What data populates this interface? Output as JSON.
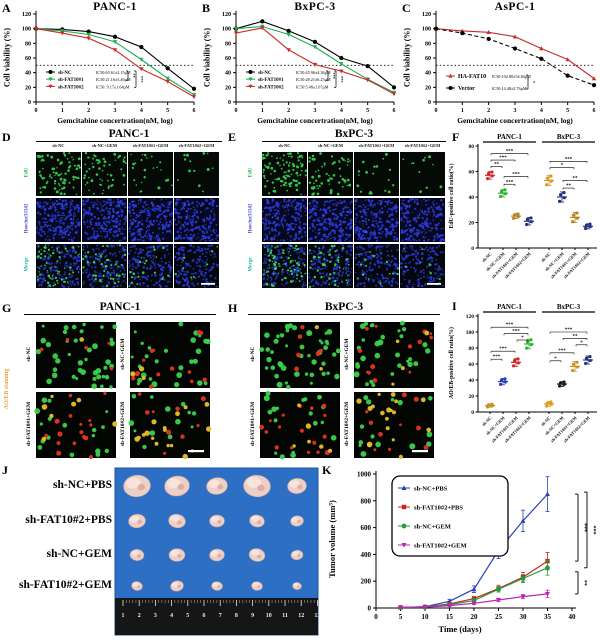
{
  "chart_data": [
    {
      "id": "A",
      "panel_label": "A",
      "type": "line",
      "title": "PANC-1",
      "xlabel": "Gemcitabine concertration(nM, log)",
      "ylabel": "Cell viability (%)",
      "xlim": [
        0,
        6
      ],
      "ylim": [
        0,
        120
      ],
      "ytick": 20,
      "hline": 50,
      "sig": [
        "**",
        "***"
      ],
      "series": [
        {
          "name": "sh-NC",
          "ic50": "IC50:65.61±2.15μM",
          "color": "#000000",
          "marker": "circle",
          "values": [
            100,
            99,
            96,
            89,
            75,
            46,
            18
          ]
        },
        {
          "name": "sh-FAT10#1",
          "ic50": "IC50:21.16±3.46μM",
          "color": "#1faf54",
          "marker": "tri-down",
          "values": [
            100,
            97,
            92,
            82,
            58,
            32,
            10
          ]
        },
        {
          "name": "sh-FAT10#2",
          "ic50": "IC50: 9.17±1.64μM",
          "color": "#c92c2c",
          "marker": "tri-down",
          "values": [
            100,
            94,
            87,
            71,
            45,
            28,
            7
          ]
        }
      ]
    },
    {
      "id": "B",
      "panel_label": "B",
      "type": "line",
      "title": "BxPC-3",
      "xlabel": "Gemcitabine concertration(nM, log)",
      "ylabel": "Cell viability (%)",
      "xlim": [
        0,
        6
      ],
      "ylim": [
        0,
        120
      ],
      "ytick": 20,
      "hline": 50,
      "sig": [
        "***",
        "***"
      ],
      "series": [
        {
          "name": "sh-NC",
          "ic50": "IC50:45.96±4.36μM",
          "color": "#000000",
          "marker": "circle",
          "values": [
            100,
            110,
            97,
            82,
            60,
            49,
            20
          ]
        },
        {
          "name": "sh-FAT10#1",
          "ic50": "IC50:28.21±6.25μM",
          "color": "#1faf54",
          "marker": "tri-down",
          "values": [
            100,
            103,
            92,
            75,
            52,
            31,
            13
          ]
        },
        {
          "name": "sh-FAT10#2",
          "ic50": "IC50:5.48±1.07μM",
          "color": "#c92c2c",
          "marker": "tri-down",
          "values": [
            94,
            101,
            71,
            51,
            42,
            30,
            11
          ]
        }
      ]
    },
    {
      "id": "C",
      "panel_label": "C",
      "type": "line",
      "title": "AsPC-1",
      "xlabel": "Gemcitabine concertration(nM, log)",
      "ylabel": "Cell viability (%)",
      "xlim": [
        0,
        6
      ],
      "ylim": [
        0,
        120
      ],
      "ytick": 20,
      "hline": 50,
      "sig": [
        "*"
      ],
      "series": [
        {
          "name": "HA-FAT10",
          "ic50": "IC50:192.80±54.84μM",
          "color": "#c92c2c",
          "marker": "tri-up",
          "values": [
            100,
            97,
            95,
            89,
            73,
            58,
            32
          ]
        },
        {
          "name": "Vector",
          "ic50": "IC50:14.48±2.76μM",
          "color": "#000000",
          "marker": "circle",
          "dash": "4,2.5",
          "values": [
            100,
            94,
            86,
            73,
            59,
            36,
            23
          ]
        }
      ]
    },
    {
      "id": "F",
      "panel_label": "F",
      "type": "dot",
      "ylabel": "EdU-positive cell ratio(%)",
      "ylim": [
        0,
        80
      ],
      "ytick": 20,
      "groups": [
        {
          "title": "PANC-1",
          "cats": [
            {
              "label": "sh-NC",
              "color": "#cc2a2a",
              "mean": 57,
              "sd": 3
            },
            {
              "label": "sh-NC+GEM",
              "color": "#2db32d",
              "mean": 43,
              "sd": 3
            },
            {
              "label": "sh-FAT10#1+GEM",
              "color": "#b5831e",
              "mean": 25,
              "sd": 2
            },
            {
              "label": "sh-FAT10#2+GEM",
              "color": "#20337f",
              "mean": 21,
              "sd": 3
            }
          ]
        },
        {
          "title": "BxPC-3",
          "cats": [
            {
              "label": "sh-NC",
              "color": "#d9981f",
              "mean": 53,
              "sd": 4
            },
            {
              "label": "sh-NC+GEM",
              "color": "#20337f",
              "mean": 40,
              "sd": 4
            },
            {
              "label": "sh-FAT10#1+GEM",
              "color": "#b5831e",
              "mean": 24,
              "sd": 4
            },
            {
              "label": "sh-FAT10#2+GEM",
              "color": "#20337f",
              "mean": 17,
              "sd": 2
            }
          ]
        }
      ],
      "sig": [
        {
          "i1": 0,
          "i2": 3,
          "y": 74,
          "s": "***"
        },
        {
          "i1": 0,
          "i2": 2,
          "y": 69,
          "s": "***"
        },
        {
          "i1": 0,
          "i2": 1,
          "y": 64,
          "s": "**"
        },
        {
          "i1": 1,
          "i2": 3,
          "y": 56,
          "s": "***"
        },
        {
          "i1": 1,
          "i2": 2,
          "y": 50,
          "s": "***"
        },
        {
          "i1": 4,
          "i2": 7,
          "y": 68,
          "s": "***"
        },
        {
          "i1": 4,
          "i2": 6,
          "y": 63,
          "s": "*"
        },
        {
          "i1": 5,
          "i2": 7,
          "y": 53,
          "s": "**"
        },
        {
          "i1": 5,
          "i2": 6,
          "y": 47,
          "s": "**"
        }
      ]
    },
    {
      "id": "I",
      "panel_label": "I",
      "type": "dot",
      "ylabel": "AO/EB-positive cell ratio(%)",
      "ylim": [
        0,
        120
      ],
      "ytick": 20,
      "groups": [
        {
          "title": "PANC-1",
          "cats": [
            {
              "label": "sh-NC",
              "color": "#c8921e",
              "mean": 8,
              "sd": 2
            },
            {
              "label": "sh-NC+GEM",
              "color": "#2a3fb8",
              "mean": 38,
              "sd": 4
            },
            {
              "label": "sh-FAT10#1+GEM",
              "color": "#cc2a2a",
              "mean": 62,
              "sd": 5
            },
            {
              "label": "sh-FAT10#2+GEM",
              "color": "#2db32d",
              "mean": 85,
              "sd": 6
            }
          ]
        },
        {
          "title": "BxPC-3",
          "cats": [
            {
              "label": "sh-NC",
              "color": "#e09a20",
              "mean": 10,
              "sd": 3
            },
            {
              "label": "sh-NC+GEM",
              "color": "#1a1a1a",
              "mean": 35,
              "sd": 3
            },
            {
              "label": "sh-FAT10#1+GEM",
              "color": "#c8921e",
              "mean": 57,
              "sd": 6
            },
            {
              "label": "sh-FAT10#2+GEM",
              "color": "#20337f",
              "mean": 65,
              "sd": 5
            }
          ]
        }
      ],
      "sig": [
        {
          "i1": 0,
          "i2": 3,
          "y": 106,
          "s": "***"
        },
        {
          "i1": 1,
          "i2": 3,
          "y": 98,
          "s": "***"
        },
        {
          "i1": 2,
          "i2": 3,
          "y": 90,
          "s": "*"
        },
        {
          "i1": 0,
          "i2": 2,
          "y": 76,
          "s": "***"
        },
        {
          "i1": 0,
          "i2": 1,
          "y": 66,
          "s": "***"
        },
        {
          "i1": 4,
          "i2": 7,
          "y": 100,
          "s": "***"
        },
        {
          "i1": 5,
          "i2": 7,
          "y": 92,
          "s": "**"
        },
        {
          "i1": 6,
          "i2": 7,
          "y": 84,
          "s": "*"
        },
        {
          "i1": 4,
          "i2": 6,
          "y": 74,
          "s": "***"
        },
        {
          "i1": 4,
          "i2": 5,
          "y": 64,
          "s": "*"
        }
      ]
    },
    {
      "id": "K",
      "panel_label": "K",
      "type": "line",
      "xlabel": "Time (days)",
      "ylabel": "Tumor volume (mm³)",
      "x": [
        5,
        10,
        15,
        20,
        25,
        30,
        35
      ],
      "xlim": [
        0,
        40
      ],
      "xtick": 5,
      "ylim": [
        0,
        1000
      ],
      "ytick": 200,
      "sig": [
        "***",
        "***",
        "**"
      ],
      "series": [
        {
          "name": "sh-NC+PBS",
          "color": "#2a3fb8",
          "marker": "tri-up",
          "values": [
            5,
            10,
            50,
            140,
            430,
            650,
            850
          ],
          "err": [
            3,
            5,
            15,
            25,
            60,
            80,
            130
          ]
        },
        {
          "name": "sh-FAT10#2+PBS",
          "color": "#cc2222",
          "marker": "square",
          "values": [
            4,
            8,
            30,
            70,
            145,
            230,
            350
          ],
          "err": [
            2,
            4,
            10,
            15,
            25,
            35,
            65
          ]
        },
        {
          "name": "sh-NC+GEM",
          "color": "#1fa03c",
          "marker": "circle",
          "values": [
            4,
            8,
            25,
            55,
            140,
            220,
            300
          ],
          "err": [
            2,
            4,
            8,
            12,
            20,
            30,
            55
          ]
        },
        {
          "name": "sh-FAT10#2+GEM",
          "color": "#bb22bb",
          "marker": "tri-down",
          "values": [
            4,
            7,
            18,
            35,
            60,
            85,
            105
          ],
          "err": [
            2,
            3,
            6,
            8,
            12,
            15,
            28
          ]
        }
      ]
    }
  ],
  "panels": {
    "D": {
      "label": "D",
      "title": "PANC-1",
      "columns": [
        "sh-NC",
        "sh-NC+GEM",
        "sh-FAT10#1+GEM",
        "sh-FAT10#2+GEM"
      ],
      "rows": [
        {
          "label": "EdU",
          "color": "#22b14c"
        },
        {
          "label": "Hoechst33342",
          "color": "#3f48cc"
        },
        {
          "label": "Merge",
          "color": "#18b3a6"
        }
      ],
      "edu_counts": [
        85,
        55,
        24,
        13
      ],
      "nuclei_count": 170
    },
    "E": {
      "label": "E",
      "title": "BxPC-3",
      "columns": [
        "sh-NC",
        "sh-NC+GEM",
        "sh-FAT10#1+GEM",
        "sh-FAT10#2+GEM"
      ],
      "rows": [
        {
          "label": "EdU",
          "color": "#22b14c"
        },
        {
          "label": "Hoechst33342",
          "color": "#3f48cc"
        },
        {
          "label": "Merge",
          "color": "#18b3a6"
        }
      ],
      "edu_counts": [
        95,
        60,
        20,
        11
      ],
      "nuclei_count": 170
    },
    "G": {
      "label": "G",
      "title": "PANC-1",
      "stain_label": "AO/EB staining",
      "stain_color": "#e8a33d",
      "cells": [
        {
          "label": "sh-NC",
          "green": 42,
          "red": 5,
          "yellow": 1
        },
        {
          "label": "sh-NC+GEM",
          "green": 28,
          "red": 14,
          "yellow": 3
        },
        {
          "label": "sh-FAT10#1+GEM",
          "green": 17,
          "red": 16,
          "yellow": 7
        },
        {
          "label": "sh-FAT10#2+GEM",
          "green": 13,
          "red": 9,
          "yellow": 17
        }
      ]
    },
    "H": {
      "label": "H",
      "title": "BxPC-3",
      "stain_label": "",
      "stain_color": "#e8a33d",
      "cells": [
        {
          "label": "sh-NC",
          "green": 45,
          "red": 6,
          "yellow": 2
        },
        {
          "label": "sh-NC+GEM",
          "green": 30,
          "red": 13,
          "yellow": 4
        },
        {
          "label": "sh-FAT10#1+GEM",
          "green": 18,
          "red": 17,
          "yellow": 6
        },
        {
          "label": "sh-FAT10#2+GEM",
          "green": 14,
          "red": 10,
          "yellow": 18
        }
      ]
    },
    "J": {
      "label": "J",
      "row_labels": [
        "sh-NC+PBS",
        "sh-FAT10#2+PBS",
        "sh-NC+GEM",
        "sh-FAT10#2+GEM"
      ],
      "ruler_numbers": [
        "1",
        "2",
        "3",
        "4",
        "5",
        "6",
        "7",
        "8",
        "9",
        "10",
        "11",
        "12",
        "13"
      ],
      "tumor_sizes": [
        [
          27,
          25,
          21,
          27,
          19
        ],
        [
          17,
          17,
          15,
          15,
          13
        ],
        [
          14,
          16,
          15,
          16,
          12
        ],
        [
          11,
          13,
          11,
          11,
          9
        ]
      ]
    }
  }
}
